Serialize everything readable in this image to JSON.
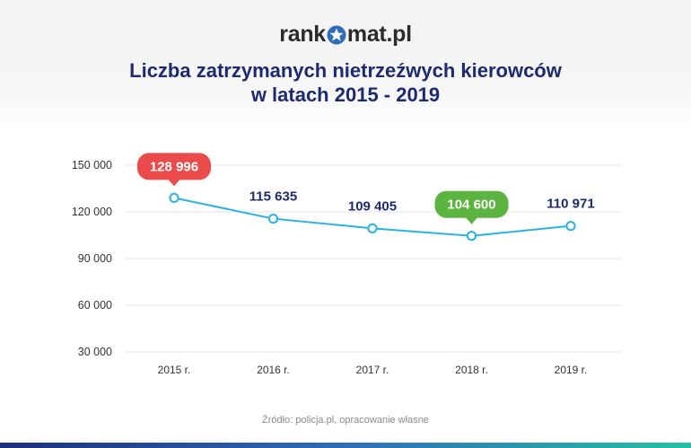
{
  "brand": {
    "prefix": "rank",
    "suffix": "mat.pl",
    "icon": "star-icon"
  },
  "title_line1": "Liczba zatrzymanych nietrzeźwych kierowców",
  "title_line2": "w latach 2015 - 2019",
  "source": "Źródło: policja.pl, opracowanie własne",
  "colors": {
    "line": "#29b3e3",
    "axis_text": "#333333",
    "value_text": "#1e2a6e",
    "max_badge": "#ec4b4b",
    "min_badge": "#5bb43f",
    "title": "#1e2a6e"
  },
  "chart_data": {
    "type": "line",
    "title": "Liczba zatrzymanych nietrzeźwych kierowców w latach 2015 - 2019",
    "categories": [
      "2015 r.",
      "2016 r.",
      "2017 r.",
      "2018 r.",
      "2019 r."
    ],
    "values": [
      128996,
      115635,
      109405,
      104600,
      110971
    ],
    "value_labels": [
      "128 996",
      "115 635",
      "109 405",
      "104 600",
      "110 971"
    ],
    "highlight": {
      "max_index": 0,
      "min_index": 3
    },
    "y_ticks": [
      30000,
      60000,
      90000,
      120000,
      150000
    ],
    "y_tick_labels": [
      "30 000",
      "60 000",
      "90 000",
      "120 000",
      "150 000"
    ],
    "ylim": [
      30000,
      150000
    ],
    "grid": true,
    "xlabel": "",
    "ylabel": ""
  }
}
